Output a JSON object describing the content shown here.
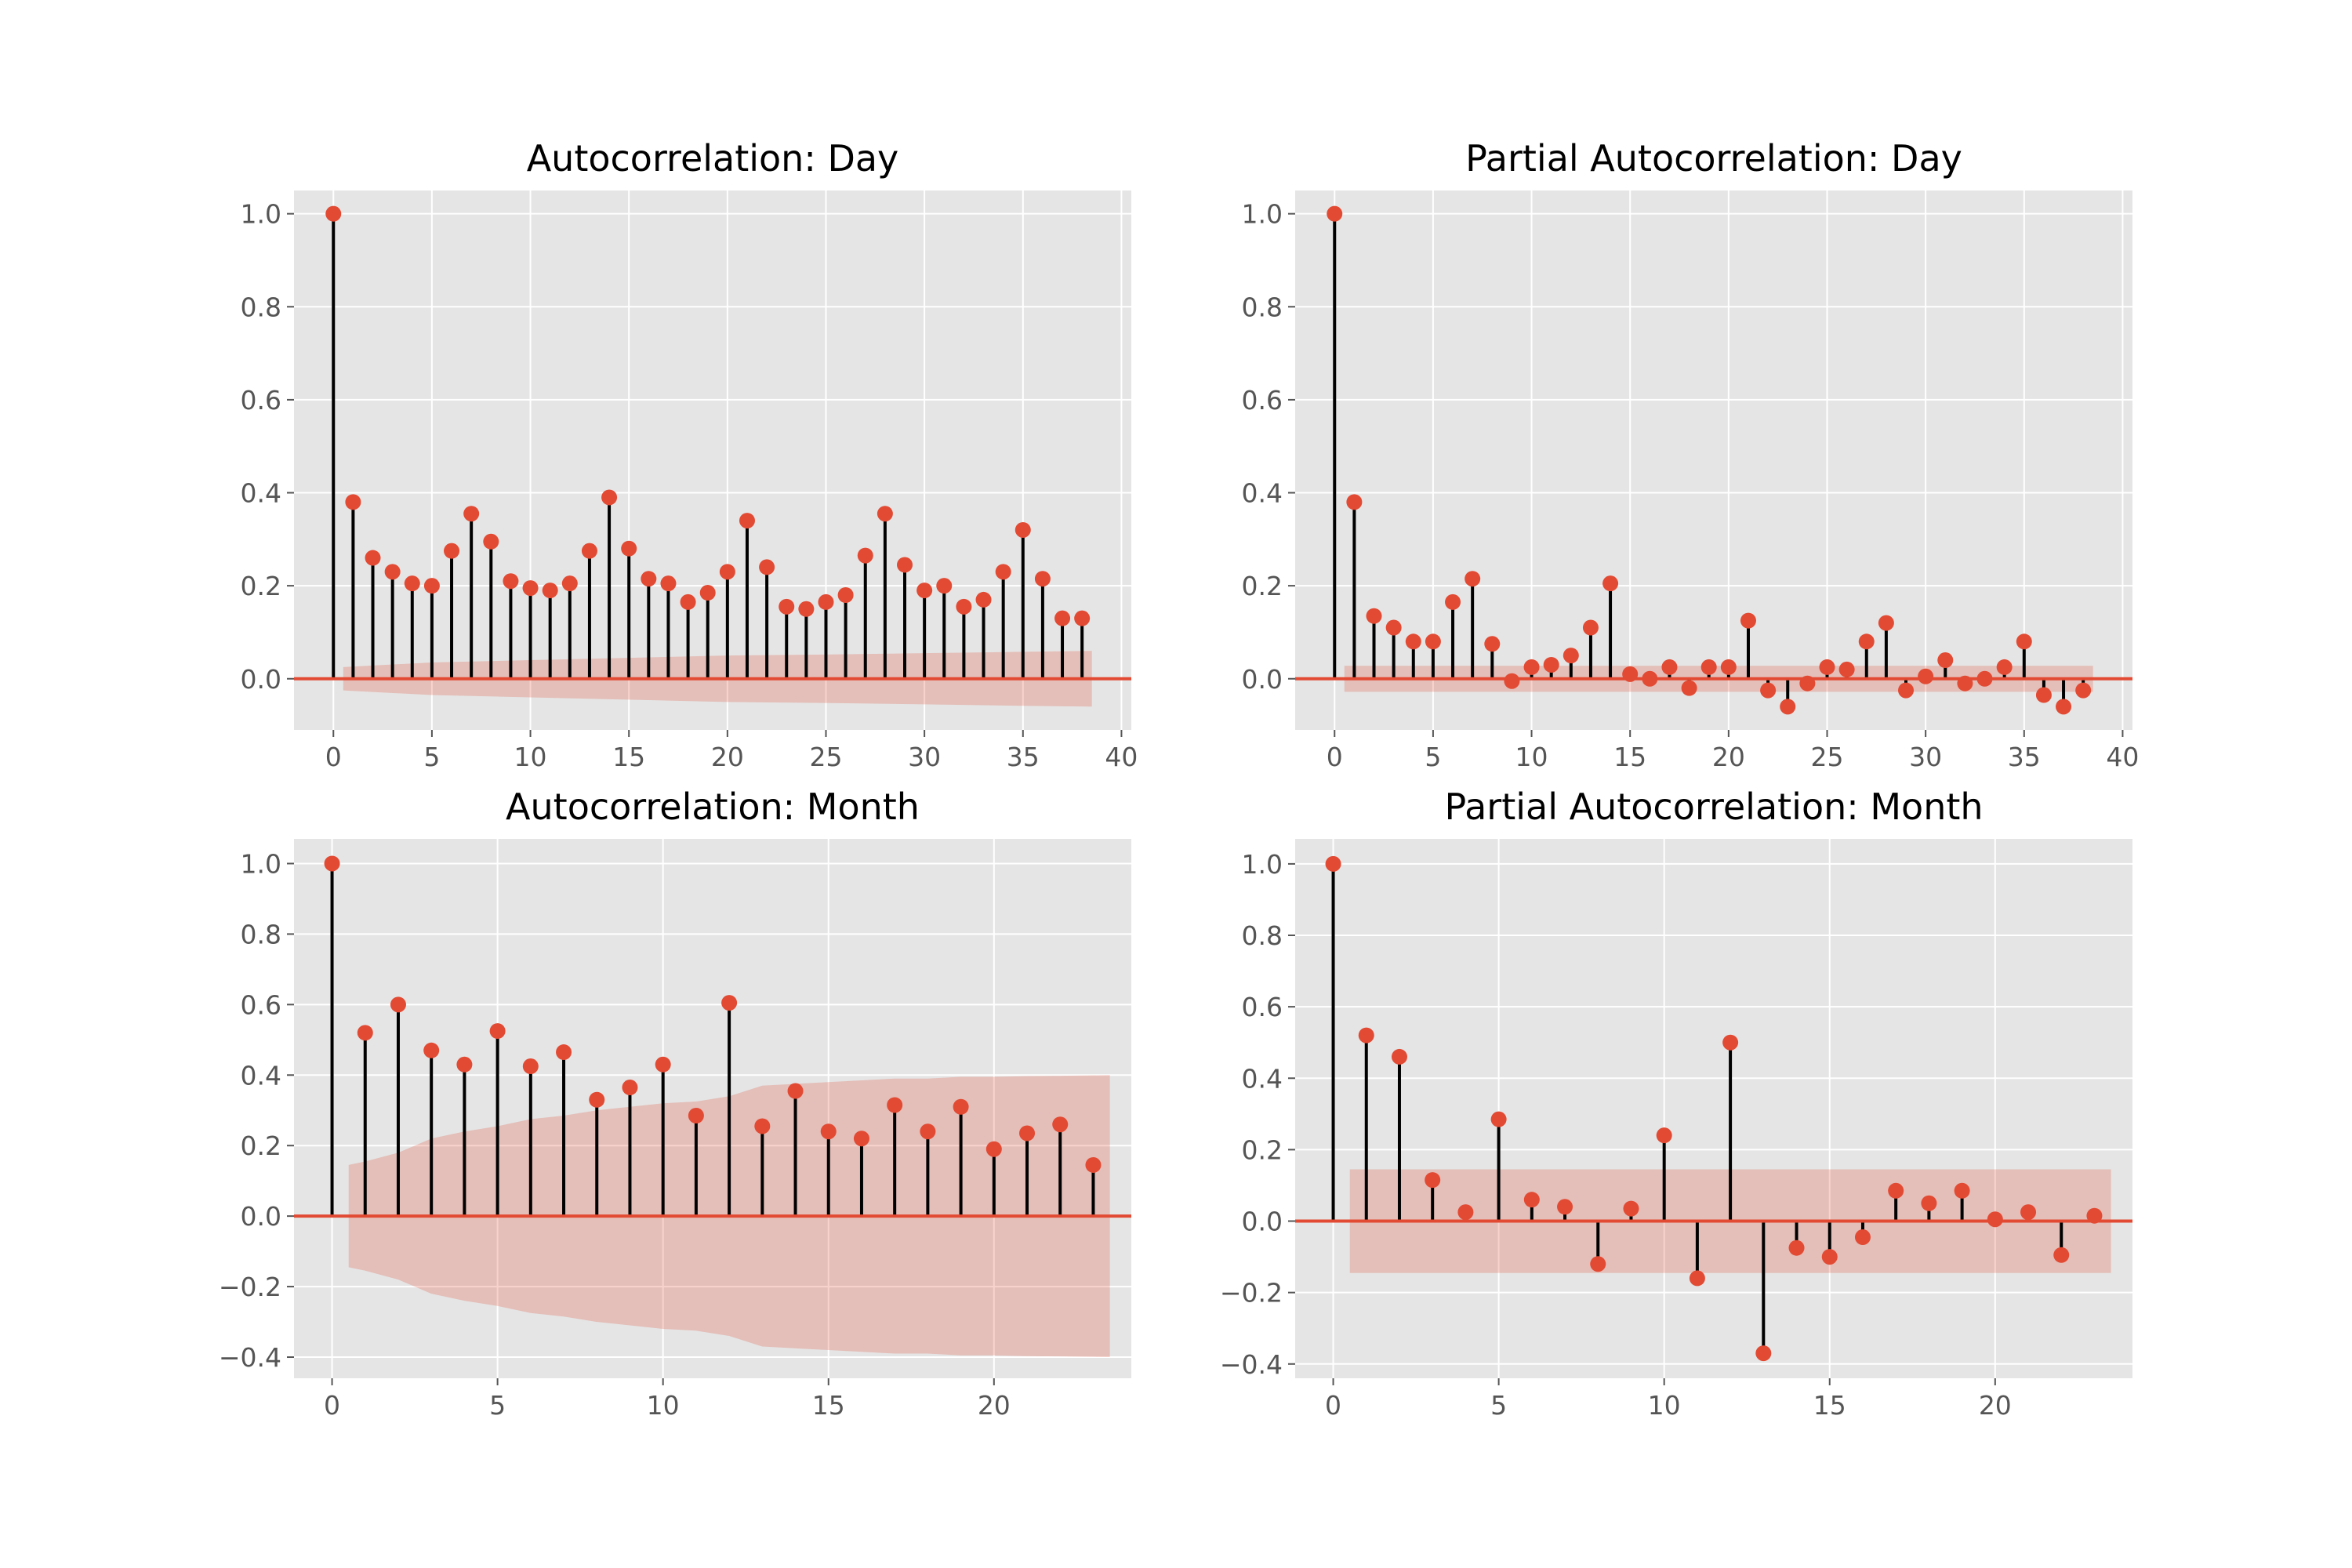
{
  "figure": {
    "style": "ggplot",
    "colors": {
      "panel_bg": "#E5E5E5",
      "grid": "#FFFFFF",
      "marker": "#E24A33",
      "stem": "#000000",
      "confidence_band": "#E24A33",
      "tick_text": "#555555"
    }
  },
  "chart_data": [
    {
      "type": "stem",
      "title": "Autocorrelation: Day",
      "xlabel": "",
      "ylabel": "",
      "xlim": [
        -2,
        40.5
      ],
      "ylim": [
        -0.11,
        1.05
      ],
      "xticks": [
        0,
        5,
        10,
        15,
        20,
        25,
        30,
        35,
        40
      ],
      "yticks": [
        0.0,
        0.2,
        0.4,
        0.6,
        0.8,
        1.0
      ],
      "ytick_labels": [
        "0.0",
        "0.2",
        "0.4",
        "0.6",
        "0.8",
        "1.0"
      ],
      "grid": true,
      "lags": [
        0,
        1,
        2,
        3,
        4,
        5,
        6,
        7,
        8,
        9,
        10,
        11,
        12,
        13,
        14,
        15,
        16,
        17,
        18,
        19,
        20,
        21,
        22,
        23,
        24,
        25,
        26,
        27,
        28,
        29,
        30,
        31,
        32,
        33,
        34,
        35,
        36,
        37,
        38
      ],
      "values": [
        1.0,
        0.38,
        0.26,
        0.23,
        0.205,
        0.2,
        0.275,
        0.355,
        0.295,
        0.21,
        0.195,
        0.19,
        0.205,
        0.275,
        0.39,
        0.28,
        0.215,
        0.205,
        0.165,
        0.185,
        0.23,
        0.34,
        0.24,
        0.155,
        0.15,
        0.165,
        0.18,
        0.265,
        0.355,
        0.245,
        0.19,
        0.2,
        0.155,
        0.17,
        0.23,
        0.32,
        0.215,
        0.13,
        0.13
      ],
      "confint": {
        "lags": [
          0.5,
          5,
          10,
          15,
          20,
          25,
          30,
          35,
          38.5
        ],
        "upper": [
          0.025,
          0.035,
          0.04,
          0.045,
          0.05,
          0.052,
          0.055,
          0.058,
          0.06
        ],
        "lower": [
          -0.025,
          -0.035,
          -0.04,
          -0.045,
          -0.05,
          -0.052,
          -0.055,
          -0.058,
          -0.06
        ]
      }
    },
    {
      "type": "stem",
      "title": "Partial Autocorrelation: Day",
      "xlabel": "",
      "ylabel": "",
      "xlim": [
        -2,
        40.5
      ],
      "ylim": [
        -0.11,
        1.05
      ],
      "xticks": [
        0,
        5,
        10,
        15,
        20,
        25,
        30,
        35,
        40
      ],
      "yticks": [
        0.0,
        0.2,
        0.4,
        0.6,
        0.8,
        1.0
      ],
      "ytick_labels": [
        "0.0",
        "0.2",
        "0.4",
        "0.6",
        "0.8",
        "1.0"
      ],
      "grid": true,
      "lags": [
        0,
        1,
        2,
        3,
        4,
        5,
        6,
        7,
        8,
        9,
        10,
        11,
        12,
        13,
        14,
        15,
        16,
        17,
        18,
        19,
        20,
        21,
        22,
        23,
        24,
        25,
        26,
        27,
        28,
        29,
        30,
        31,
        32,
        33,
        34,
        35,
        36,
        37,
        38
      ],
      "values": [
        1.0,
        0.38,
        0.135,
        0.11,
        0.08,
        0.08,
        0.165,
        0.215,
        0.075,
        -0.005,
        0.025,
        0.03,
        0.05,
        0.11,
        0.205,
        0.01,
        0.0,
        0.025,
        -0.02,
        0.025,
        0.025,
        0.125,
        -0.025,
        -0.06,
        -0.01,
        0.025,
        0.02,
        0.08,
        0.12,
        -0.025,
        0.005,
        0.04,
        -0.01,
        0.0,
        0.025,
        0.08,
        -0.035,
        -0.06,
        -0.025
      ],
      "confint": {
        "lags": [
          0.5,
          38.5
        ],
        "upper": [
          0.028,
          0.028
        ],
        "lower": [
          -0.028,
          -0.028
        ]
      }
    },
    {
      "type": "stem",
      "title": "Autocorrelation: Month",
      "xlabel": "",
      "ylabel": "",
      "xlim": [
        -1.15,
        24.15
      ],
      "ylim": [
        -0.46,
        1.07
      ],
      "xticks": [
        0,
        5,
        10,
        15,
        20
      ],
      "yticks": [
        -0.4,
        -0.2,
        0.0,
        0.2,
        0.4,
        0.6,
        0.8,
        1.0
      ],
      "ytick_labels": [
        "−0.4",
        "−0.2",
        "0.0",
        "0.2",
        "0.4",
        "0.6",
        "0.8",
        "1.0"
      ],
      "grid": true,
      "lags": [
        0,
        1,
        2,
        3,
        4,
        5,
        6,
        7,
        8,
        9,
        10,
        11,
        12,
        13,
        14,
        15,
        16,
        17,
        18,
        19,
        20,
        21,
        22,
        23
      ],
      "values": [
        1.0,
        0.52,
        0.6,
        0.47,
        0.43,
        0.525,
        0.425,
        0.465,
        0.33,
        0.365,
        0.43,
        0.285,
        0.605,
        0.255,
        0.355,
        0.24,
        0.22,
        0.315,
        0.24,
        0.31,
        0.19,
        0.235,
        0.26,
        0.145
      ],
      "confint": {
        "lags": [
          0.5,
          1,
          2,
          3,
          4,
          5,
          6,
          7,
          8,
          9,
          10,
          11,
          12,
          13,
          14,
          15,
          16,
          17,
          18,
          19,
          20,
          21,
          22,
          23.5
        ],
        "upper": [
          0.145,
          0.155,
          0.18,
          0.22,
          0.24,
          0.255,
          0.275,
          0.285,
          0.3,
          0.31,
          0.32,
          0.325,
          0.34,
          0.37,
          0.375,
          0.38,
          0.385,
          0.39,
          0.39,
          0.395,
          0.395,
          0.397,
          0.398,
          0.4
        ],
        "lower": [
          -0.145,
          -0.155,
          -0.18,
          -0.22,
          -0.24,
          -0.255,
          -0.275,
          -0.285,
          -0.3,
          -0.31,
          -0.32,
          -0.325,
          -0.34,
          -0.37,
          -0.375,
          -0.38,
          -0.385,
          -0.39,
          -0.39,
          -0.395,
          -0.395,
          -0.397,
          -0.398,
          -0.4
        ]
      }
    },
    {
      "type": "stem",
      "title": "Partial Autocorrelation: Month",
      "xlabel": "",
      "ylabel": "",
      "xlim": [
        -1.15,
        24.15
      ],
      "ylim": [
        -0.44,
        1.07
      ],
      "xticks": [
        0,
        5,
        10,
        15,
        20
      ],
      "yticks": [
        -0.4,
        -0.2,
        0.0,
        0.2,
        0.4,
        0.6,
        0.8,
        1.0
      ],
      "ytick_labels": [
        "−0.4",
        "−0.2",
        "0.0",
        "0.2",
        "0.4",
        "0.6",
        "0.8",
        "1.0"
      ],
      "grid": true,
      "lags": [
        0,
        1,
        2,
        3,
        4,
        5,
        6,
        7,
        8,
        9,
        10,
        11,
        12,
        13,
        14,
        15,
        16,
        17,
        18,
        19,
        20,
        21,
        22,
        23
      ],
      "values": [
        1.0,
        0.52,
        0.46,
        0.115,
        0.025,
        0.285,
        0.06,
        0.04,
        -0.12,
        0.035,
        0.24,
        -0.16,
        0.5,
        -0.37,
        -0.075,
        -0.1,
        -0.045,
        0.085,
        0.05,
        0.085,
        0.005,
        0.025,
        -0.095,
        0.015
      ],
      "confint": {
        "lags": [
          0.5,
          23.5
        ],
        "upper": [
          0.145,
          0.145
        ],
        "lower": [
          -0.145,
          -0.145
        ]
      }
    }
  ]
}
